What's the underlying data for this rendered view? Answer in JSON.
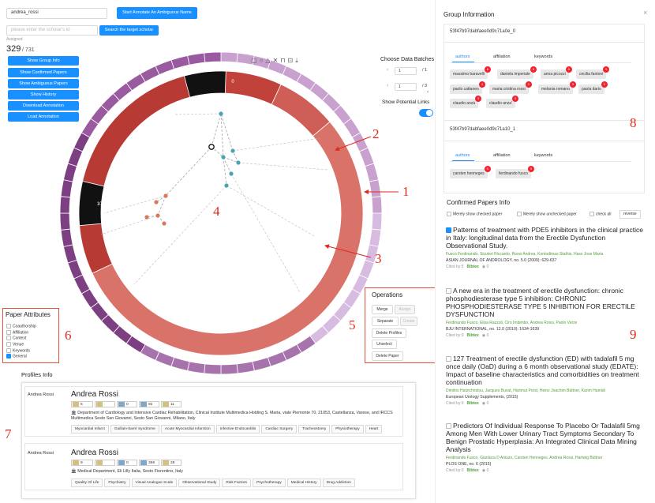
{
  "search": {
    "name_value": "andrea_rossi",
    "annotate_button": "Start Annotate An Ambiguous Name",
    "scholar_placeholder": "please enter the scholar's id",
    "scholar_button": "Search the target scholar",
    "assigned_label": "Assigned",
    "assigned_count": "329",
    "total_count": "/ 731"
  },
  "nav_buttons": [
    "Show Group Info",
    "Show Confirmed Papers",
    "Show Ambiguous Papers",
    "Show History",
    "Download Annotation",
    "Load Annotation"
  ],
  "batches": {
    "title": "Choose Data Batches",
    "batch1_value": "1",
    "batch1_total": "/ 1",
    "batch2_value": "1",
    "batch2_total": "/ 3",
    "potential_links_label": "Show Potential Links"
  },
  "chart_labels": {
    "top_a": "0",
    "left_a": "10",
    "small": [
      "8",
      "2",
      "3",
      "8",
      "4"
    ]
  },
  "operations": {
    "title": "Operations",
    "merge": "Merge",
    "assign": "Assign",
    "separate": "Separate",
    "create": "Create",
    "delete_profiles": "Delete Profiles",
    "unselect": "Unselect",
    "delete_paper": "Delete Paper"
  },
  "paper_attributes": {
    "title": "Paper Attributes",
    "items": [
      "Coauthorship",
      "Affiliation",
      "Context",
      "Venue",
      "Keywords",
      "General"
    ]
  },
  "profiles": {
    "title": "Profiles Info",
    "cards": [
      {
        "left_label": "Andrea Rossi",
        "name": "Andrea Rossi",
        "stats": [
          "6",
          "",
          "0",
          "92",
          "11"
        ],
        "affiliation": "Department of Cardiology and Intensive Cardiac Rehabilitation, Clinical Institute Multimedica Holding S. Maria, viale Piemonte 70, 21053, Castellanza, Varese, and IRCCS Multimedica Sesto San Giovanni, Sesto San Giovanni, Milano, Italy",
        "tags": [
          "Myocardial Infarct",
          "Guillain-barré Syndrome",
          "Acute Myocardial Infarction",
          "Infective Endocarditis",
          "Cardiac Surgery",
          "Tracheostomy",
          "Physiotherapy",
          "Heart"
        ]
      },
      {
        "left_label": "Andrea Rossi",
        "name": "Andrea Rossi",
        "stats": [
          "9",
          "",
          "0",
          "359",
          "28"
        ],
        "affiliation": "Medical Department, Eli Lilly Italia, Sesto Fiorentino, Italy",
        "tags": [
          "Quality Of Life",
          "Psychiatry",
          "Visual Analogue Scale",
          "Observational Study",
          "Risk Factors",
          "Psychotherapy",
          "Medical History",
          "Drug Addiction"
        ]
      }
    ]
  },
  "group_info": {
    "title": "Group Information",
    "close": "×",
    "groups": [
      {
        "id": "53f47b97dabfaee0d9c71a0e_0",
        "tabs": [
          "authors",
          "affiliation",
          "keywords"
        ],
        "authors": [
          {
            "name": "massimo baravelli",
            "badge": "6"
          },
          {
            "name": "daniela imperiale",
            "badge": "5"
          },
          {
            "name": "anna picozzi",
            "badge": "5"
          },
          {
            "name": "cecilia fantoni",
            "badge": "5"
          },
          {
            "name": "paolo cattaneo",
            "badge": "4"
          },
          {
            "name": "maria cristina rossi",
            "badge": "3"
          },
          {
            "name": "melania romano",
            "badge": "3"
          },
          {
            "name": "paola dario",
            "badge": "3"
          },
          {
            "name": "claudio anzà",
            "badge": "3"
          },
          {
            "name": "claudio anza'",
            "badge": "3"
          }
        ]
      },
      {
        "id": "53f47b97dabfaee0d9c71a10_1",
        "tabs": [
          "authors",
          "affiliation",
          "keywords"
        ],
        "authors": [
          {
            "name": "carsten henneges",
            "badge": "5"
          },
          {
            "name": "ferdinando fusco",
            "badge": "5"
          }
        ]
      }
    ]
  },
  "confirmed": {
    "title": "Confirmed Papers Info",
    "filter_checked": "Merely show checked paper",
    "filter_unchecked": "Merely show unchecked paper",
    "check_all": "check all",
    "reverse": "reverse",
    "papers": [
      {
        "checked": true,
        "title": "Patterns of treatment with PDE5 inhibitors in the clinical practice in Italy: longitudinal data from the Erectile Dysfunction Observational Study.",
        "authors": "Fusco Ferdinando, Sicuteri Riccardo, Rossi Andrea, Kontodimas Stathis, Hass Jose Maria",
        "venue": "ASIAN JOURNAL OF ANDROLOGY, no. 5.0 (2009): 629-637",
        "cited": "Cited by:5",
        "bibtex": "Bibtex",
        "views": "0"
      },
      {
        "checked": false,
        "title": "A new era in the treatment of erectile dysfunction: chronic phosphodiesterase type 5 inhibition: CHRONIC PHOSPHODIESTERASE TYPE 5 INHIBITION FOR ERECTILE DYSFUNCTION",
        "authors": "Ferdinando Fusco, Elisa Razzoli, Ciro Imbimbo, Andrea Rossi, Paolo Verze",
        "venue": "BJU INTERNATIONAL, no. 12.0 (2010): 1634-1639",
        "cited": "Cited by:0",
        "bibtex": "Bibtex",
        "views": "0"
      },
      {
        "checked": false,
        "title": "127 Treatment of erectile dysfunction (ED) with tadalafil 5 mg once daily (OaD) during a 6 month observational study (EDATE): Impact of baseline characteristics and comorbidities on treatment continuation",
        "authors": "Dimitris Hatzichristou, Jacques Buvat, Hartmut Porst, Heinz Joachim Büttner, Karim Hamidi",
        "venue": "European Urology Supplements, (2015)",
        "cited": "Cited by:0",
        "bibtex": "Bibtex",
        "views": "0"
      },
      {
        "checked": false,
        "title": "Predictors Of Individual Response To Placebo Or Tadalafil 5mg Among Men With Lower Urinary Tract Symptoms Secondary To Benign Prostatic Hyperplasia: An Integrated Clinical Data Mining Analysis",
        "authors": "Ferdinando Fusco, Gianluca D Aniuzo, Carsten Henneges, Andrea Rossi, Hartwig Büttner",
        "venue": "PLOS ONE, no. 6 (2015)",
        "cited": "Cited by:0",
        "bibtex": "Bibtex",
        "views": "0"
      }
    ]
  },
  "annotations": [
    "1",
    "2",
    "3",
    "4",
    "5",
    "6",
    "7",
    "8",
    "9"
  ],
  "colors": {
    "accent": "#1890ff",
    "dark_red": "#b83a34",
    "mid_red": "#d9736a",
    "light_pink": "#e8a49e",
    "outer_purple": "#7c3f82",
    "outer_lilac": "#c9a1cf",
    "annotation_red": "#e0291f"
  }
}
